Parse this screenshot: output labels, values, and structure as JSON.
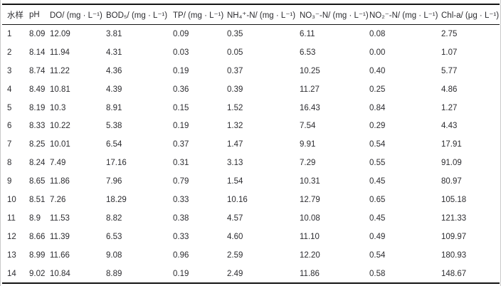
{
  "table": {
    "headers": [
      "水样",
      "pH",
      "DO/ (mg · L⁻¹)",
      "BOD₅/ (mg · L⁻¹)",
      "TP/ (mg · L⁻¹)",
      "NH₄⁺-N/ (mg · L⁻¹)",
      "NO₃⁻-N/ (mg · L⁻¹)",
      "NO₂⁻-N/ (mg · L⁻¹)",
      "Chl-a/ (μg · L⁻¹)"
    ],
    "rows": [
      [
        "1",
        "8.09",
        "12.09",
        "3.81",
        "0.09",
        "0.35",
        "6.11",
        "0.08",
        "2.75"
      ],
      [
        "2",
        "8.14",
        "11.94",
        "4.31",
        "0.03",
        "0.05",
        "6.53",
        "0.00",
        "1.07"
      ],
      [
        "3",
        "8.74",
        "11.22",
        "4.36",
        "0.19",
        "0.37",
        "10.25",
        "0.40",
        "5.77"
      ],
      [
        "4",
        "8.49",
        "10.81",
        "4.39",
        "0.36",
        "0.39",
        "11.27",
        "0.25",
        "4.86"
      ],
      [
        "5",
        "8.19",
        "10.3",
        "8.91",
        "0.15",
        "1.52",
        "16.43",
        "0.84",
        "1.27"
      ],
      [
        "6",
        "8.33",
        "10.22",
        "5.38",
        "0.19",
        "1.32",
        "7.54",
        "0.29",
        "4.43"
      ],
      [
        "7",
        "8.25",
        "10.01",
        "6.54",
        "0.37",
        "1.47",
        "9.91",
        "0.54",
        "17.91"
      ],
      [
        "8",
        "8.24",
        "7.49",
        "17.16",
        "0.31",
        "3.13",
        "7.29",
        "0.55",
        "91.09"
      ],
      [
        "9",
        "8.65",
        "11.86",
        "7.96",
        "0.79",
        "1.54",
        "10.31",
        "0.45",
        "80.97"
      ],
      [
        "10",
        "8.51",
        "7.26",
        "18.29",
        "0.33",
        "10.16",
        "12.79",
        "0.65",
        "105.18"
      ],
      [
        "11",
        "8.9",
        "11.53",
        "8.82",
        "0.38",
        "4.57",
        "10.08",
        "0.45",
        "121.33"
      ],
      [
        "12",
        "8.66",
        "11.39",
        "6.53",
        "0.33",
        "4.60",
        "11.10",
        "0.49",
        "109.97"
      ],
      [
        "13",
        "8.99",
        "11.66",
        "9.08",
        "0.96",
        "2.59",
        "12.20",
        "0.54",
        "180.93"
      ],
      [
        "14",
        "9.02",
        "10.84",
        "8.89",
        "0.19",
        "2.49",
        "11.86",
        "0.58",
        "148.67"
      ]
    ]
  },
  "chart_data": {
    "type": "table",
    "columns": [
      "水样",
      "pH",
      "DO/ (mg · L⁻¹)",
      "BOD₅/ (mg · L⁻¹)",
      "TP/ (mg · L⁻¹)",
      "NH₄⁺-N/ (mg · L⁻¹)",
      "NO₃⁻-N/ (mg · L⁻¹)",
      "NO₂⁻-N/ (mg · L⁻¹)",
      "Chl-a/ (μg · L⁻¹)"
    ],
    "rows": [
      [
        1,
        8.09,
        12.09,
        3.81,
        0.09,
        0.35,
        6.11,
        0.08,
        2.75
      ],
      [
        2,
        8.14,
        11.94,
        4.31,
        0.03,
        0.05,
        6.53,
        0.0,
        1.07
      ],
      [
        3,
        8.74,
        11.22,
        4.36,
        0.19,
        0.37,
        10.25,
        0.4,
        5.77
      ],
      [
        4,
        8.49,
        10.81,
        4.39,
        0.36,
        0.39,
        11.27,
        0.25,
        4.86
      ],
      [
        5,
        8.19,
        10.3,
        8.91,
        0.15,
        1.52,
        16.43,
        0.84,
        1.27
      ],
      [
        6,
        8.33,
        10.22,
        5.38,
        0.19,
        1.32,
        7.54,
        0.29,
        4.43
      ],
      [
        7,
        8.25,
        10.01,
        6.54,
        0.37,
        1.47,
        9.91,
        0.54,
        17.91
      ],
      [
        8,
        8.24,
        7.49,
        17.16,
        0.31,
        3.13,
        7.29,
        0.55,
        91.09
      ],
      [
        9,
        8.65,
        11.86,
        7.96,
        0.79,
        1.54,
        10.31,
        0.45,
        80.97
      ],
      [
        10,
        8.51,
        7.26,
        18.29,
        0.33,
        10.16,
        12.79,
        0.65,
        105.18
      ],
      [
        11,
        8.9,
        11.53,
        8.82,
        0.38,
        4.57,
        10.08,
        0.45,
        121.33
      ],
      [
        12,
        8.66,
        11.39,
        6.53,
        0.33,
        4.6,
        11.1,
        0.49,
        109.97
      ],
      [
        13,
        8.99,
        11.66,
        9.08,
        0.96,
        2.59,
        12.2,
        0.54,
        180.93
      ],
      [
        14,
        9.02,
        10.84,
        8.89,
        0.19,
        2.49,
        11.86,
        0.58,
        148.67
      ]
    ]
  },
  "colors": {
    "rule": "#141414",
    "text": "#2c2c30",
    "background": "#ffffff",
    "edge": "#c9c9c9"
  }
}
